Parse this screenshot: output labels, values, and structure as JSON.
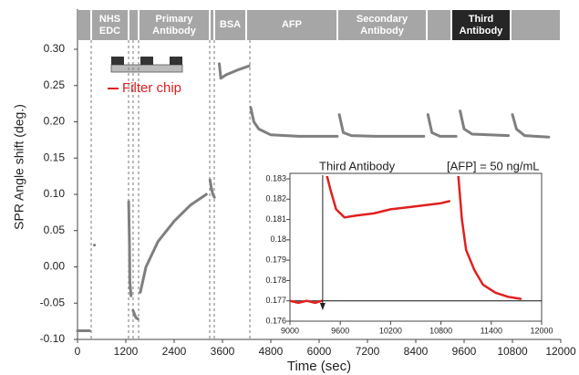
{
  "chart_data": [
    {
      "type": "line",
      "xlabel": "Time (sec)",
      "ylabel": "SPR Angle shift (deg.)",
      "xlim": [
        0,
        12000
      ],
      "xticks": [
        0,
        1200,
        2400,
        3600,
        4800,
        6000,
        7200,
        8400,
        9600,
        10800,
        12000
      ],
      "ylim": [
        -0.1,
        0.3
      ],
      "yticks": [
        {
          "value": -0.1,
          "label": "-0.10"
        },
        {
          "value": -0.05,
          "label": "-0.05"
        },
        {
          "value": 0,
          "label": "0.00"
        },
        {
          "value": 0.05,
          "label": "0.05"
        },
        {
          "value": 0.1,
          "label": "0.10"
        },
        {
          "value": 0.15,
          "label": "0.15"
        },
        {
          "value": 0.2,
          "label": "0.20"
        },
        {
          "value": 0.25,
          "label": "0.25"
        },
        {
          "value": 0.3,
          "label": "0.30"
        }
      ],
      "phases": [
        {
          "start": 0,
          "end": 340,
          "color": "#a6a6a6"
        },
        {
          "label": "NHS EDC",
          "start": 340,
          "end": 1268,
          "color": "#a6a6a6"
        },
        {
          "start": 1268,
          "end": 1517,
          "color": "#a6a6a6"
        },
        {
          "label": "Primary Antibody",
          "start": 1517,
          "end": 3283,
          "color": "#a6a6a6"
        },
        {
          "start": 3283,
          "end": 3396,
          "color": "#a6a6a6"
        },
        {
          "label": "BSA",
          "start": 3396,
          "end": 4189,
          "color": "#a6a6a6"
        },
        {
          "label": "AFP",
          "start": 4189,
          "end": 6453,
          "color": "#a6a6a6"
        },
        {
          "label": "Secondary Antibody",
          "start": 6453,
          "end": 8672,
          "color": "#a6a6a6"
        },
        {
          "start": 8672,
          "end": 9283,
          "color": "#a6a6a6"
        },
        {
          "label": "Third Antibody",
          "start": 9283,
          "end": 10755,
          "color": "#262626"
        },
        {
          "start": 10755,
          "end": 12000,
          "color": "#a6a6a6"
        }
      ],
      "dashed_lines": [
        340,
        1268,
        1380,
        1517,
        3283,
        3396,
        4280
      ],
      "annotation": "Filter chip",
      "annotation_color": "#e02020",
      "x": [
        0,
        300,
        null,
        420,
        null,
        1270,
        1290,
        1300,
        1330,
        null,
        1380,
        1450,
        1500,
        null,
        1560,
        1700,
        2000,
        2400,
        2800,
        3200,
        null,
        3290,
        3320,
        3360,
        3400,
        null,
        3520,
        3560,
        3700,
        4000,
        4260,
        null,
        4300,
        4380,
        4500,
        4800,
        5500,
        6450,
        null,
        6500,
        6600,
        6800,
        7400,
        8600,
        null,
        8700,
        8800,
        9000,
        9400,
        null,
        9500,
        9600,
        9800,
        10700,
        null,
        10800,
        10900,
        11100,
        11700
      ],
      "series": [
        {
          "color": "#7f7f7f",
          "values": [
            -0.088,
            -0.088,
            null,
            0.03,
            null,
            0.09,
            0.03,
            -0.02,
            -0.04,
            null,
            -0.06,
            -0.07,
            -0.072,
            null,
            -0.035,
            0.0,
            0.035,
            0.063,
            0.085,
            0.1,
            null,
            0.12,
            0.11,
            0.1,
            0.096,
            null,
            0.28,
            0.26,
            0.265,
            0.272,
            0.277,
            null,
            0.22,
            0.2,
            0.19,
            0.182,
            0.18,
            0.18,
            null,
            0.21,
            0.185,
            0.181,
            0.18,
            0.18,
            null,
            0.21,
            0.185,
            0.18,
            0.18,
            null,
            0.215,
            0.19,
            0.183,
            0.181,
            null,
            0.21,
            0.19,
            0.181,
            0.179
          ]
        }
      ]
    },
    {
      "type": "line",
      "xlim": [
        9000,
        12000
      ],
      "xticks": [
        9000,
        9600,
        10200,
        10800,
        11400,
        12000
      ],
      "ylim": [
        0.176,
        0.183
      ],
      "yticks": [
        0.176,
        0.177,
        0.178,
        0.179,
        0.18,
        0.181,
        0.182,
        0.183
      ],
      "reference_line": 0.177,
      "annotation": "Third Antibody",
      "annotation_x": 9390,
      "note": "[AFP] =  50 ng/mL",
      "x": [
        9000,
        9100,
        9200,
        9300,
        9380,
        null,
        9420,
        9480,
        9550,
        9650,
        9800,
        10000,
        10200,
        10400,
        10600,
        10800,
        10900,
        null,
        11000,
        11050,
        11100,
        11200,
        11300,
        11450,
        11600,
        11750
      ],
      "series": [
        {
          "color": "#e02020",
          "values": [
            0.177,
            0.1769,
            0.177,
            0.1769,
            0.177,
            null,
            0.1835,
            0.1825,
            0.1815,
            0.1811,
            0.1812,
            0.1813,
            0.1815,
            0.1816,
            0.1817,
            0.1818,
            0.1819,
            null,
            0.1835,
            0.181,
            0.1795,
            0.1785,
            0.1778,
            0.1774,
            0.1772,
            0.1771
          ]
        }
      ]
    }
  ]
}
